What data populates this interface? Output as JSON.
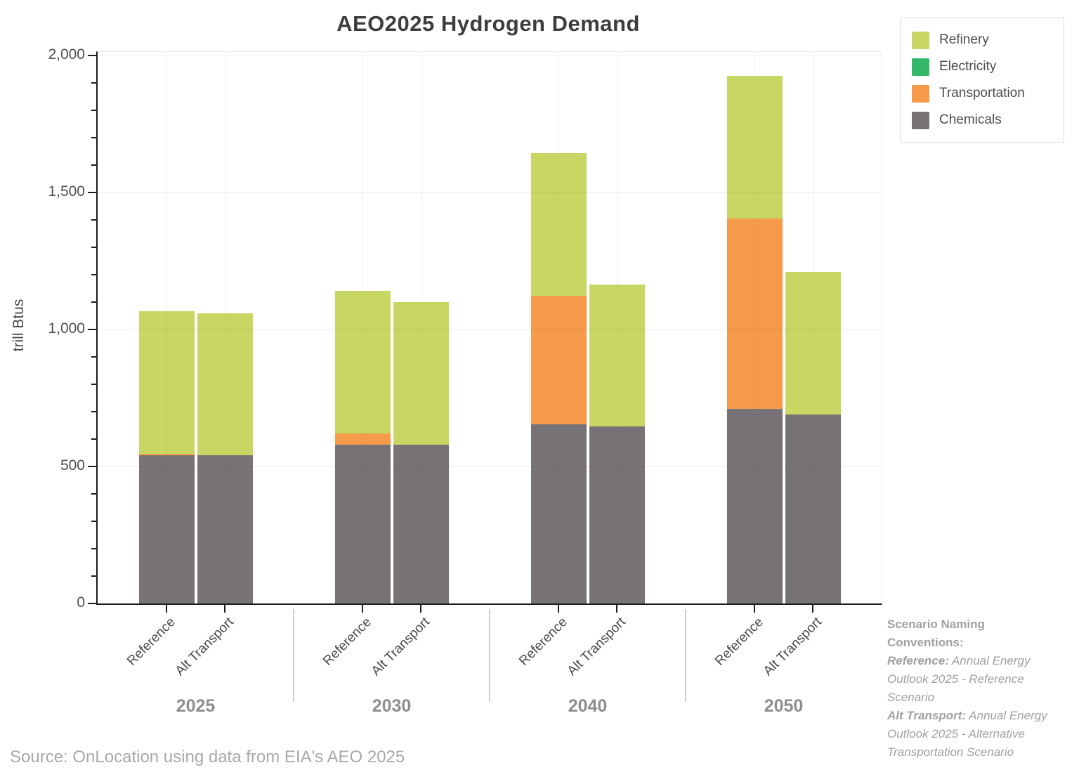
{
  "title": "AEO2025 Hydrogen Demand",
  "source_note": "Source: OnLocation using data from EIA's AEO 2025",
  "annotation": {
    "heading": "Scenario Naming Conventions:",
    "entries": [
      {
        "term": "Reference:",
        "definition": " Annual Energy Outlook 2025 - Reference Scenario"
      },
      {
        "term": "Alt Transport:",
        "definition": " Annual Energy Outlook 2025 - Alternative Transportation Scenario"
      }
    ]
  },
  "chart_data": {
    "type": "bar",
    "stacked": true,
    "title": "AEO2025 Hydrogen Demand",
    "xlabel": "",
    "ylabel": "trill Btus",
    "ylim": [
      0,
      2000
    ],
    "grid": true,
    "legend_position": "top-right",
    "y_major_ticks": [
      {
        "value": 0,
        "label": "0"
      },
      {
        "value": 500,
        "label": "500"
      },
      {
        "value": 1000,
        "label": "1,000"
      },
      {
        "value": 1500,
        "label": "1,500"
      },
      {
        "value": 2000,
        "label": "2,000"
      }
    ],
    "y_minor_step": 100,
    "groups": [
      "2025",
      "2030",
      "2040",
      "2050"
    ],
    "bar_labels": [
      "Reference",
      "Alt Transport"
    ],
    "columns": [
      "2025 Reference",
      "2025 Alt Transport",
      "2030 Reference",
      "2030 Alt Transport",
      "2040 Reference",
      "2040 Alt Transport",
      "2050 Reference",
      "2050 Alt Transport"
    ],
    "stack_order_bottom_to_top": [
      "Chemicals",
      "Transportation",
      "Electricity",
      "Refinery"
    ],
    "legend_order": [
      "Refinery",
      "Electricity",
      "Transportation",
      "Chemicals"
    ],
    "series": [
      {
        "name": "Refinery",
        "color": "#c8d763",
        "values": [
          520,
          520,
          520,
          520,
          520,
          520,
          520,
          520
        ]
      },
      {
        "name": "Electricity",
        "color": "#34b769",
        "values": [
          0,
          0,
          0,
          0,
          0,
          0,
          0,
          0
        ]
      },
      {
        "name": "Transportation",
        "color": "#f59b4a",
        "values": [
          7,
          0,
          40,
          0,
          468,
          0,
          695,
          0
        ]
      },
      {
        "name": "Chemicals",
        "color": "#767276",
        "values": [
          540,
          540,
          580,
          580,
          655,
          645,
          710,
          690
        ]
      }
    ],
    "totals": [
      1067,
      1060,
      1140,
      1100,
      1643,
      1165,
      1925,
      1210
    ]
  },
  "style_colors": {
    "axis": "#1c1c1c",
    "gridline": "#ececec",
    "group_separator": "#cfcfcf",
    "title_text": "#3d3d3d",
    "year_label_text": "#8e8e8e",
    "muted_text": "#a0a0a0"
  }
}
